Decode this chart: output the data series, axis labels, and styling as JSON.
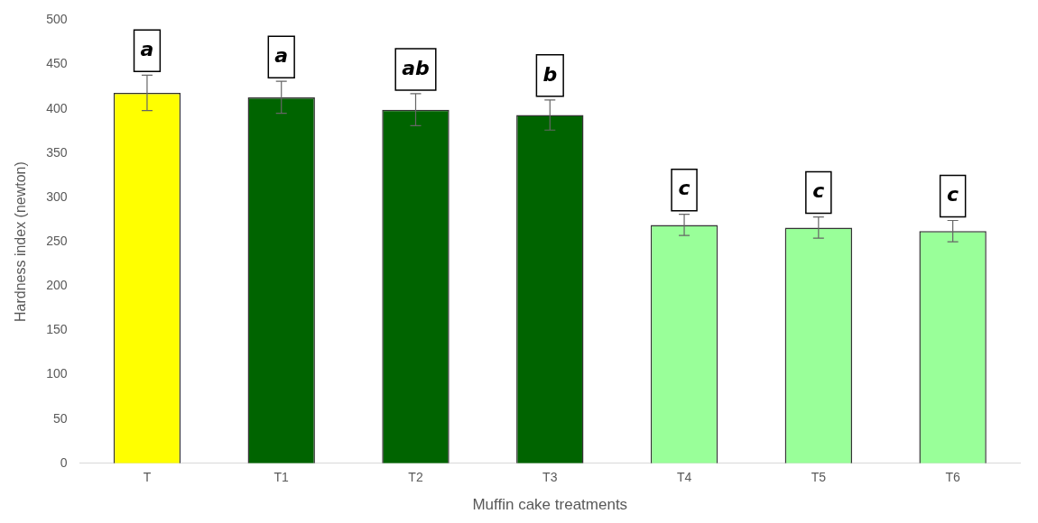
{
  "chart_data": {
    "type": "bar",
    "xlabel": "Muffin cake treatments",
    "ylabel": "Hardness index (newton)",
    "categories": [
      "T",
      "T1",
      "T2",
      "T3",
      "T4",
      "T5",
      "T6"
    ],
    "values": [
      418,
      413,
      399,
      393,
      269,
      266,
      262
    ],
    "errors": [
      20,
      18,
      18,
      17,
      12,
      12,
      12
    ],
    "colors": [
      "#ffff00",
      "#006400",
      "#006400",
      "#006400",
      "#99ff99",
      "#99ff99",
      "#99ff99"
    ],
    "ylim": [
      0,
      500
    ],
    "yticks": [
      0,
      50,
      100,
      150,
      200,
      250,
      300,
      350,
      400,
      450,
      500
    ],
    "grid": false,
    "annotations": [
      {
        "text": "a",
        "x": "T",
        "y": 418
      },
      {
        "text": "a",
        "x": "T1",
        "y": 413
      },
      {
        "text": "ab",
        "x": "T2",
        "y": 399
      },
      {
        "text": "b",
        "x": "T3",
        "y": 393
      },
      {
        "text": "c",
        "x": "T4",
        "y": 269
      },
      {
        "text": "c",
        "x": "T5",
        "y": 266
      },
      {
        "text": "c",
        "x": "T6",
        "y": 262
      }
    ]
  }
}
